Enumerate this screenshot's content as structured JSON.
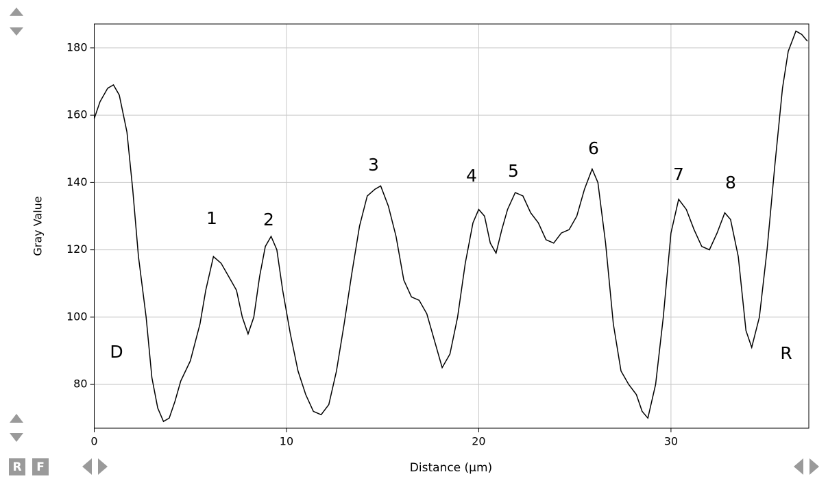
{
  "chart_data": {
    "type": "line",
    "xlabel": "Distance (µm)",
    "ylabel": "Gray Value",
    "x": [
      0,
      0.3,
      0.7,
      1.0,
      1.3,
      1.7,
      2.0,
      2.3,
      2.7,
      3.0,
      3.3,
      3.6,
      3.9,
      4.2,
      4.5,
      5.0,
      5.5,
      5.8,
      6.2,
      6.6,
      7.0,
      7.4,
      7.7,
      8.0,
      8.3,
      8.6,
      8.9,
      9.2,
      9.5,
      9.8,
      10.2,
      10.6,
      11.0,
      11.4,
      11.8,
      12.2,
      12.6,
      13.0,
      13.4,
      13.8,
      14.2,
      14.6,
      14.9,
      15.3,
      15.7,
      16.1,
      16.5,
      16.9,
      17.3,
      17.7,
      18.1,
      18.5,
      18.9,
      19.3,
      19.7,
      20.0,
      20.3,
      20.6,
      20.9,
      21.2,
      21.5,
      21.9,
      22.3,
      22.7,
      23.1,
      23.5,
      23.9,
      24.3,
      24.7,
      25.1,
      25.5,
      25.9,
      26.2,
      26.6,
      27.0,
      27.4,
      27.8,
      28.2,
      28.5,
      28.8,
      29.2,
      29.6,
      30.0,
      30.4,
      30.8,
      31.2,
      31.6,
      32.0,
      32.4,
      32.8,
      33.1,
      33.5,
      33.9,
      34.2,
      34.6,
      35.0,
      35.4,
      35.8,
      36.1,
      36.5,
      36.8,
      37.1
    ],
    "values": [
      159,
      164,
      168,
      169,
      166,
      155,
      138,
      118,
      100,
      82,
      73,
      69,
      70,
      75,
      81,
      87,
      98,
      108,
      118,
      116,
      112,
      108,
      100,
      95,
      100,
      112,
      121,
      124,
      120,
      108,
      95,
      84,
      77,
      72,
      71,
      74,
      84,
      98,
      113,
      127,
      136,
      138,
      139,
      133,
      124,
      111,
      106,
      105,
      101,
      93,
      85,
      89,
      100,
      116,
      128,
      132,
      130,
      122,
      119,
      126,
      132,
      137,
      136,
      131,
      128,
      123,
      122,
      125,
      126,
      130,
      138,
      144,
      140,
      122,
      98,
      84,
      80,
      77,
      72,
      70,
      80,
      100,
      125,
      135,
      132,
      126,
      121,
      120,
      125,
      131,
      129,
      118,
      96,
      91,
      100,
      120,
      145,
      168,
      179,
      185,
      184,
      182
    ],
    "color": "#000000",
    "xlim": [
      0,
      37.17
    ],
    "ylim": [
      67,
      187.1
    ],
    "xticks": [
      0,
      10,
      20,
      30
    ],
    "yticks": [
      80,
      100,
      120,
      140,
      160,
      180
    ],
    "grid": true,
    "annotations": [
      "1",
      "2",
      "3",
      "4",
      "5",
      "6",
      "7",
      "8",
      "D",
      "R"
    ]
  },
  "buttons": [
    "R",
    "F"
  ]
}
